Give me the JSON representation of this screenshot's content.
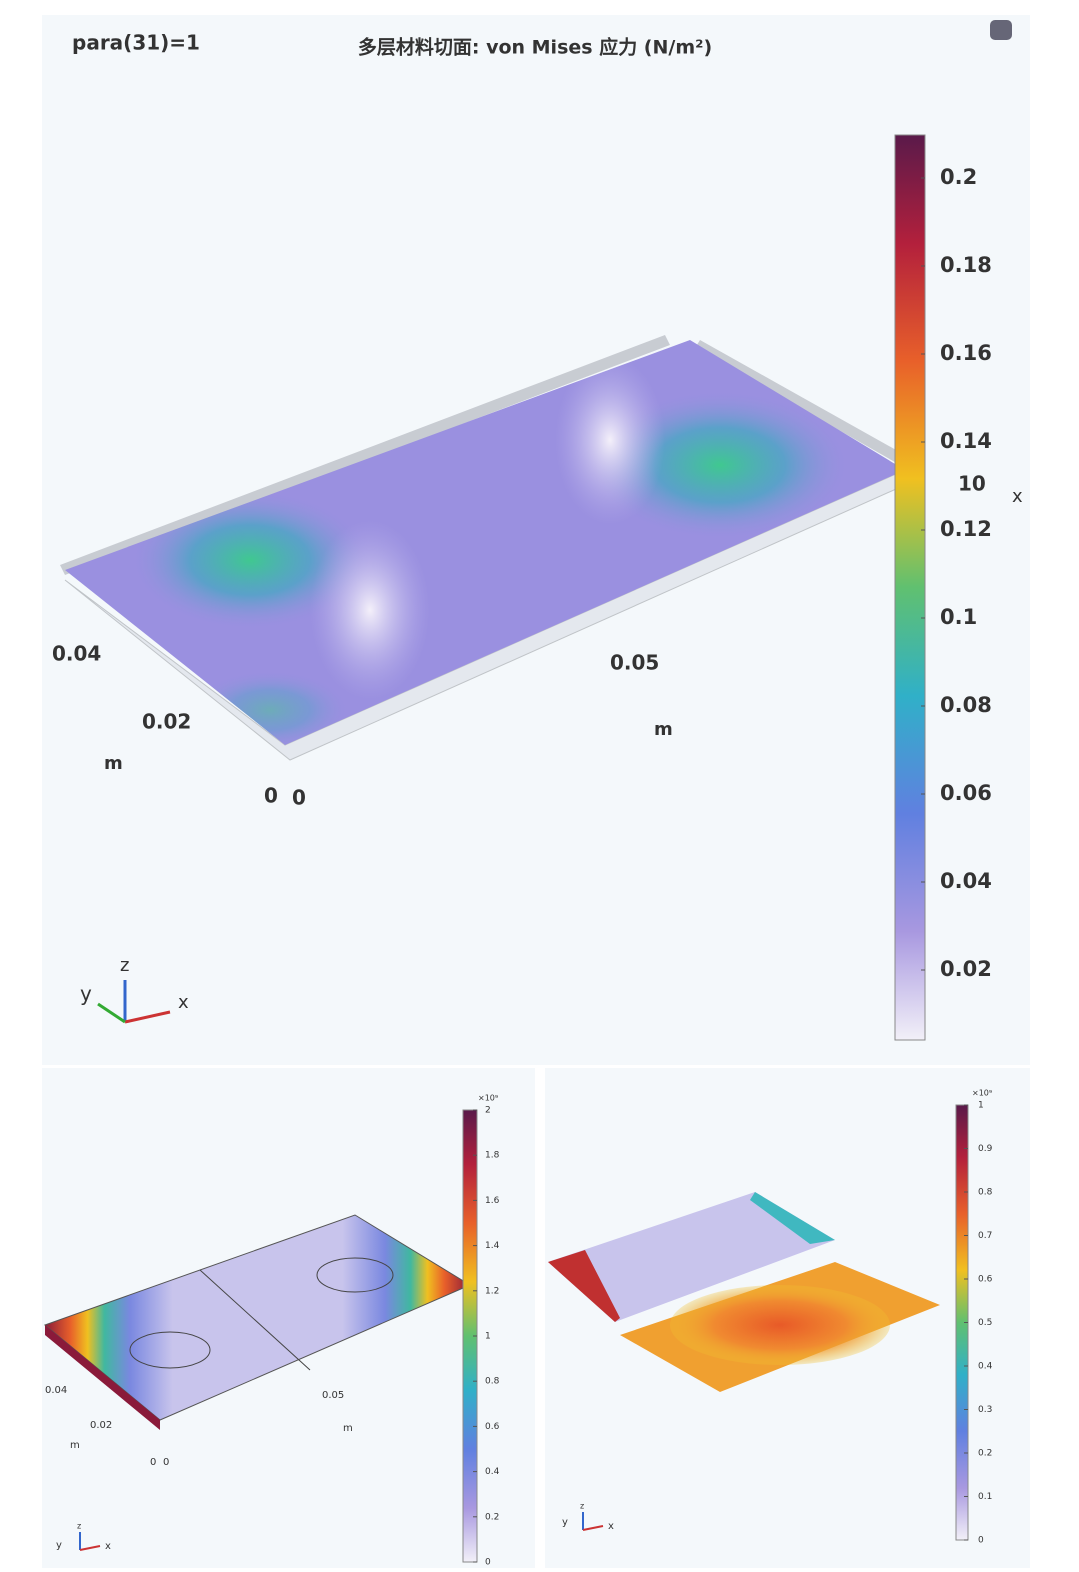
{
  "main": {
    "label": "para(31)=1",
    "title": "多层材料切面: von Mises 应力 (N/m²)",
    "colorbar": {
      "ticks": [
        "0.2",
        "0.18",
        "0.16",
        "0.14",
        "0.12",
        "0.1",
        "0.08",
        "0.06",
        "0.04",
        "0.02"
      ]
    },
    "side_labels": [
      "10",
      "x"
    ],
    "y_axis": {
      "ticks": [
        "0.04",
        "0.02",
        "0"
      ],
      "unit": "m"
    },
    "x_axis": {
      "ticks": [
        "0",
        "0.05"
      ],
      "unit": "m"
    },
    "triad": [
      "y",
      "z",
      "x"
    ]
  },
  "bottom_left": {
    "colorbar": {
      "exponent": "×10⁹",
      "ticks": [
        "2",
        "1.8",
        "1.6",
        "1.4",
        "1.2",
        "1",
        "0.8",
        "0.6",
        "0.4",
        "0.2",
        "0"
      ]
    },
    "y_axis": {
      "ticks": [
        "0.04",
        "0.02",
        "0"
      ],
      "unit": "m"
    },
    "x_axis": {
      "ticks": [
        "0",
        "0.05"
      ],
      "unit": "m"
    },
    "triad": [
      "y",
      "z",
      "x"
    ]
  },
  "bottom_right": {
    "colorbar": {
      "exponent": "×10⁹",
      "ticks": [
        "1",
        "0.9",
        "0.8",
        "0.7",
        "0.6",
        "0.5",
        "0.4",
        "0.3",
        "0.2",
        "0.1",
        "0"
      ]
    },
    "triad": [
      "y",
      "z",
      "x"
    ]
  }
}
